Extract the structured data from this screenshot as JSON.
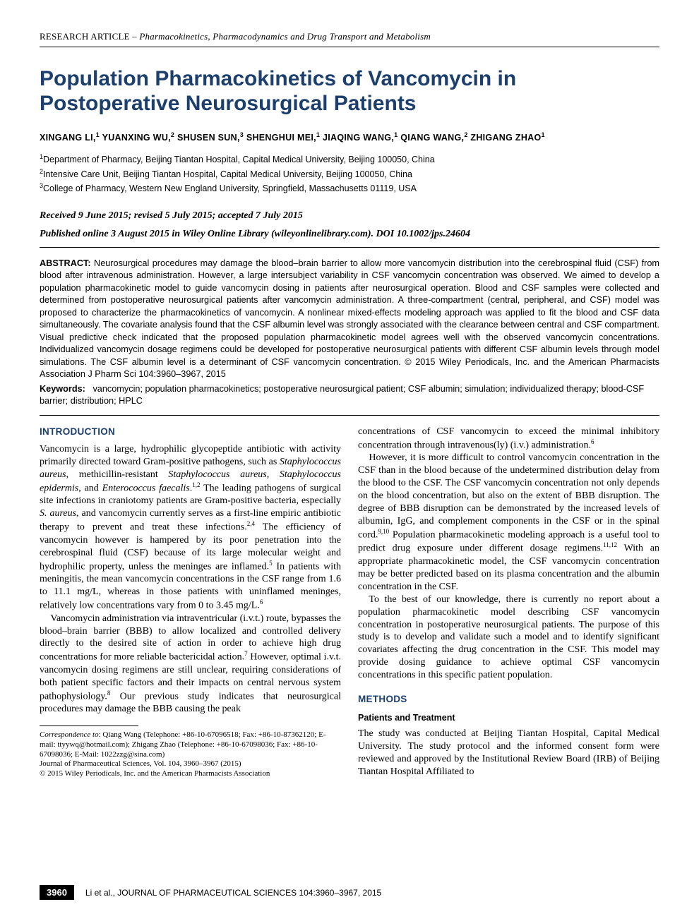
{
  "running_header": {
    "label": "RESEARCH ARTICLE – ",
    "section": "Pharmacokinetics, Pharmacodynamics and Drug Transport and Metabolism"
  },
  "title": "Population Pharmacokinetics of Vancomycin in Postoperative Neurosurgical Patients",
  "authors_html": "XINGANG LI,<sup>1</sup> YUANXING WU,<sup>2</sup> SHUSEN SUN,<sup>3</sup> SHENGHUI MEI,<sup>1</sup> JIAQING WANG,<sup>1</sup> QIANG WANG,<sup>2</sup> ZHIGANG ZHAO<sup>1</sup>",
  "affiliations": [
    "<sup>1</sup>Department of Pharmacy, Beijing Tiantan Hospital, Capital Medical University, Beijing 100050, China",
    "<sup>2</sup>Intensive Care Unit, Beijing Tiantan Hospital, Capital Medical University, Beijing 100050, China",
    "<sup>3</sup>College of Pharmacy, Western New England University, Springfield, Massachusetts 01119, USA"
  ],
  "dates": "Received 9 June 2015; revised 5 July 2015; accepted 7 July 2015",
  "pubinfo": "Published online 3 August 2015 in Wiley Online Library (wileyonlinelibrary.com). DOI 10.1002/jps.24604",
  "abstract": {
    "label": "ABSTRACT:",
    "text": "Neurosurgical procedures may damage the blood–brain barrier to allow more vancomycin distribution into the cerebrospinal fluid (CSF) from blood after intravenous administration. However, a large intersubject variability in CSF vancomycin concentration was observed. We aimed to develop a population pharmacokinetic model to guide vancomycin dosing in patients after neurosurgical operation. Blood and CSF samples were collected and determined from postoperative neurosurgical patients after vancomycin administration. A three-compartment (central, peripheral, and CSF) model was proposed to characterize the pharmacokinetics of vancomycin. A nonlinear mixed-effects modeling approach was applied to fit the blood and CSF data simultaneously. The covariate analysis found that the CSF albumin level was strongly associated with the clearance between central and CSF compartment. Visual predictive check indicated that the proposed population pharmacokinetic model agrees well with the observed vancomycin concentrations. Individualized vancomycin dosage regimens could be developed for postoperative neurosurgical patients with different CSF albumin levels through model simulations. The CSF albumin level is a determinant of CSF vancomycin concentration. © 2015 Wiley Periodicals, Inc. and the American Pharmacists Association J Pharm Sci 104:3960–3967, 2015"
  },
  "keywords": {
    "label": "Keywords:",
    "text": "vancomycin; population pharmacokinetics; postoperative neurosurgical patient; CSF albumin; simulation; individualized therapy; blood-CSF barrier; distribution; HPLC"
  },
  "sections": {
    "introduction_head": "INTRODUCTION",
    "intro_p1": "Vancomycin is a large, hydrophilic glycopeptide antibiotic with activity primarily directed toward Gram-positive pathogens, such as <i>Staphylococcus aureus</i>, methicillin-resistant <i>Staphylococcus aureus</i>, <i>Staphylococcus epidermis</i>, and <i>Enterococcus faecalis</i>.<sup>1,2</sup> The leading pathogens of surgical site infections in craniotomy patients are Gram-positive bacteria, especially <i>S. aureus,</i> and vancomycin currently serves as a first-line empiric antibiotic therapy to prevent and treat these infections.<sup>2,4</sup> The efficiency of vancomycin however is hampered by its poor penetration into the cerebrospinal fluid (CSF) because of its large molecular weight and hydrophilic property, unless the meninges are inflamed.<sup>5</sup> In patients with meningitis, the mean vancomycin concentrations in the CSF range from 1.6 to 11.1 mg/L, whereas in those patients with uninflamed meninges, relatively low concentrations vary from 0 to 3.45 mg/L.<sup>6</sup>",
    "intro_p2": "Vancomycin administration via intraventricular (i.v.t.) route, bypasses the blood–brain barrier (BBB) to allow localized and controlled delivery directly to the desired site of action in order to achieve high drug concentrations for more reliable bactericidal action.<sup>7</sup> However, optimal i.v.t. vancomycin dosing regimens are still unclear, requiring considerations of both patient specific factors and their impacts on central nervous system pathophysiology.<sup>8</sup> Our previous study indicates that neurosurgical procedures may damage the BBB causing the peak",
    "right_p1": "concentrations of CSF vancomycin to exceed the minimal inhibitory concentration through intravenous(ly) (i.v.) administration.<sup>6</sup>",
    "right_p2": "However, it is more difficult to control vancomycin concentration in the CSF than in the blood because of the undetermined distribution delay from the blood to the CSF. The CSF vancomycin concentration not only depends on the blood concentration, but also on the extent of BBB disruption. The degree of BBB disruption can be demonstrated by the increased levels of albumin, IgG, and complement components in the CSF or in the spinal cord.<sup>9,10</sup> Population pharmacokinetic modeling approach is a useful tool to predict drug exposure under different dosage regimens.<sup>11,12</sup> With an appropriate pharmacokinetic model, the CSF vancomycin concentration may be better predicted based on its plasma concentration and the albumin concentration in the CSF.",
    "right_p3": "To the best of our knowledge, there is currently no report about a population pharmacokinetic model describing CSF vancomycin concentration in postoperative neurosurgical patients. The purpose of this study is to develop and validate such a model and to identify significant covariates affecting the drug concentration in the CSF. This model may provide dosing guidance to achieve optimal CSF vancomycin concentrations in this specific patient population.",
    "methods_head": "METHODS",
    "patients_head": "Patients and Treatment",
    "methods_p1": "The study was conducted at Beijing Tiantan Hospital, Capital Medical University. The study protocol and the informed consent form were reviewed and approved by the Institutional Review Board (IRB) of Beijing Tiantan Hospital Affiliated to"
  },
  "footnotes": {
    "correspondence": "<span class=\"corr-label\">Correspondence to</span>: Qiang Wang (Telephone: +86-10-67096518; Fax: +86-10-87362120; E-mail: ttyywq@hotmail.com); Zhigang Zhao (Telephone: +86-10-67098036; Fax: +86-10-67098036; E-Mail: 1022zzg@sina.com)",
    "journal": "Journal of Pharmaceutical Sciences, Vol. 104, 3960–3967 (2015)",
    "copyright": "© 2015 Wiley Periodicals, Inc. and the American Pharmacists Association"
  },
  "footer": {
    "page": "3960",
    "cite": "Li et al., JOURNAL OF PHARMACEUTICAL SCIENCES 104:3960–3967, 2015"
  },
  "colors": {
    "heading_blue": "#1c3f6e",
    "text_black": "#000000",
    "background": "#ffffff"
  }
}
